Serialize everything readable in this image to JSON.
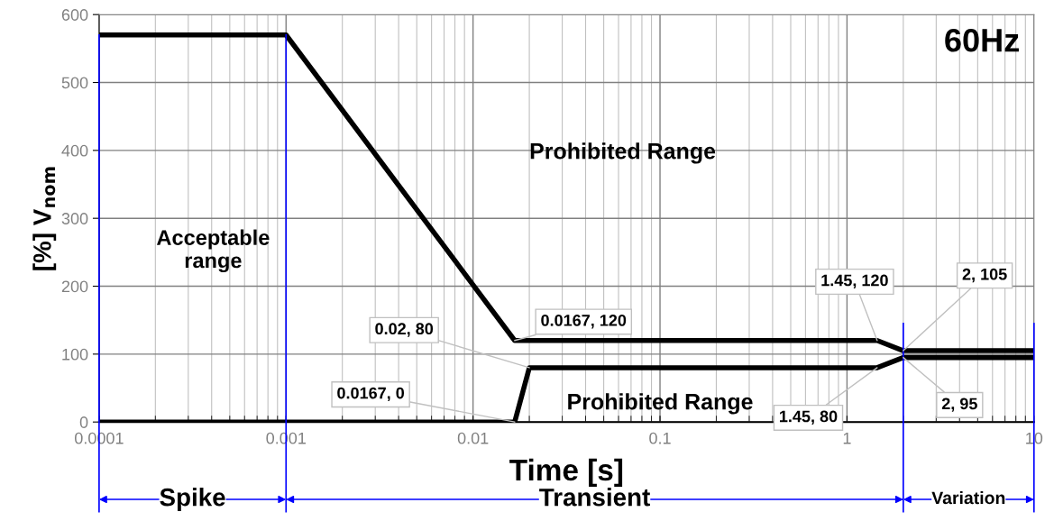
{
  "chart_data": {
    "type": "line",
    "xlabel": "Time [s]",
    "ylabel": "[%] V$_{nom}$",
    "log": "x",
    "xlim": [
      0.0001,
      10
    ],
    "xticks": [
      0.0001,
      0.001,
      0.01,
      0.1,
      1,
      10
    ],
    "ylim": [
      0,
      600
    ],
    "yticks": [
      0,
      100,
      200,
      300,
      400,
      500,
      600
    ],
    "grid": true,
    "marker": "none",
    "line_style": "solid",
    "series": [
      {
        "color": "#000000",
        "x": [
          0.0001,
          0.001,
          0.0167,
          1.45,
          2,
          10
        ],
        "values": [
          570,
          570,
          120,
          120,
          105,
          105
        ]
      },
      {
        "color": "#000000",
        "x": [
          0.0001,
          0.0167,
          0.02,
          1.45,
          2,
          10
        ],
        "values": [
          0,
          0,
          80,
          80,
          95,
          95
        ]
      }
    ],
    "ref_lines": [
      {
        "axis": "x",
        "value": 0.0001,
        "color": "#0000ff"
      },
      {
        "axis": "x",
        "value": 0.001,
        "color": "#0000ff"
      },
      {
        "axis": "x",
        "value": 2,
        "color": "#0000ff"
      },
      {
        "axis": "x",
        "value": 10,
        "color": "#0000ff"
      }
    ],
    "annotations": [
      "60Hz",
      "Acceptable\nrange",
      "Prohibited Range",
      "Prohibited Range",
      "Spike",
      "Transient",
      "Variation",
      {
        "text": "0.0167, 120",
        "x": 0.0167,
        "y": 120
      },
      {
        "text": "0.02, 80",
        "x": 0.02,
        "y": 80
      },
      {
        "text": "0.0167, 0",
        "x": 0.0167,
        "y": 0
      },
      {
        "text": "1.45, 120",
        "x": 1.45,
        "y": 120
      },
      {
        "text": "2, 105",
        "x": 2,
        "y": 105
      },
      {
        "text": "1.45, 80",
        "x": 1.45,
        "y": 80
      },
      {
        "text": "2, 95",
        "x": 2,
        "y": 95
      }
    ]
  }
}
